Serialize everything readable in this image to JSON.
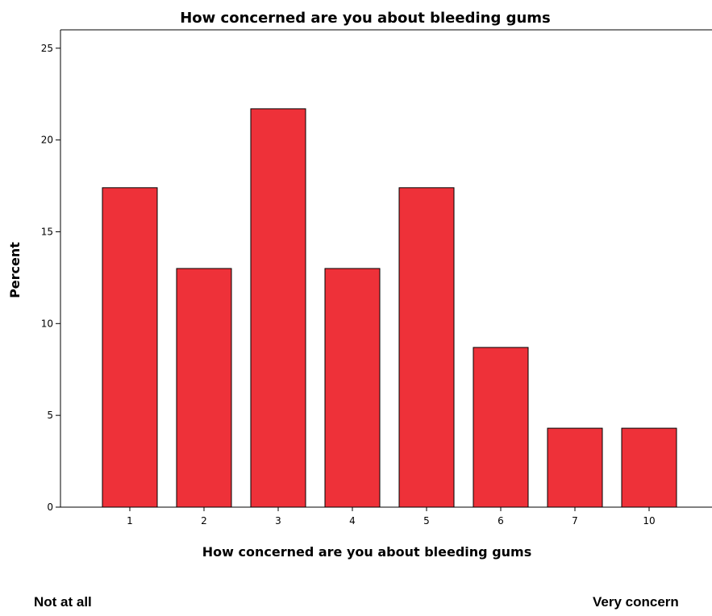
{
  "chart_data": {
    "type": "bar",
    "title": "How concerned are you about bleeding gums",
    "xlabel": "How concerned are you about bleeding gums",
    "ylabel": "Percent",
    "categories": [
      "1",
      "2",
      "3",
      "4",
      "5",
      "6",
      "7",
      "10"
    ],
    "values": [
      17.4,
      13.0,
      21.7,
      13.0,
      17.4,
      8.7,
      4.3,
      4.3
    ],
    "ylim": [
      0,
      26
    ],
    "yticks": [
      0,
      5,
      10,
      15,
      20,
      25
    ],
    "grid": false,
    "bar_color": "#ee3139",
    "bar_edge_color": "#000000"
  },
  "footer": {
    "left_label": "Not at all",
    "right_label": "Very concern"
  }
}
